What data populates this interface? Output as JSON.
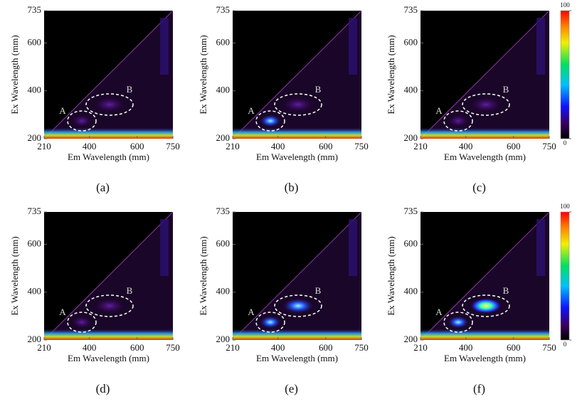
{
  "chart_data": [
    {
      "type": "heatmap",
      "caption": "(a)",
      "x_label": "Em Wavelength (mm)",
      "y_label": "Ex Wavelength (mm)",
      "xlim": [
        210,
        750
      ],
      "ylim": [
        200,
        735
      ],
      "xticks": [
        210,
        400,
        600,
        750
      ],
      "yticks": [
        200,
        400,
        600,
        735
      ],
      "annotations": [
        "A",
        "B"
      ]
    },
    {
      "type": "heatmap",
      "caption": "(b)",
      "x_label": "Em Wavelength (mm)",
      "y_label": "Ex Wavelength (mm)",
      "xlim": [
        210,
        750
      ],
      "ylim": [
        200,
        735
      ],
      "xticks": [
        210,
        400,
        600,
        750
      ],
      "yticks": [
        200,
        400,
        600,
        735
      ],
      "annotations": [
        "A",
        "B"
      ]
    },
    {
      "type": "heatmap",
      "caption": "(c)",
      "x_label": "Em Wavelength (mm)",
      "y_label": "Ex Wavelength (mm)",
      "xlim": [
        210,
        750
      ],
      "ylim": [
        200,
        735
      ],
      "xticks": [
        210,
        400,
        600,
        750
      ],
      "yticks": [
        200,
        400,
        600,
        735
      ],
      "annotations": [
        "A",
        "B"
      ],
      "clim": [
        0,
        100
      ],
      "cticks": [
        0,
        100
      ]
    },
    {
      "type": "heatmap",
      "caption": "(d)",
      "x_label": "Em Wavelength (mm)",
      "y_label": "Ex Wavelength (mm)",
      "xlim": [
        210,
        750
      ],
      "ylim": [
        200,
        735
      ],
      "xticks": [
        210,
        400,
        600,
        750
      ],
      "yticks": [
        200,
        400,
        600,
        735
      ],
      "annotations": [
        "A",
        "B"
      ]
    },
    {
      "type": "heatmap",
      "caption": "(e)",
      "x_label": "Em Wavelength (mm)",
      "y_label": "Ex Wavelength (mm)",
      "xlim": [
        210,
        750
      ],
      "ylim": [
        200,
        735
      ],
      "xticks": [
        210,
        400,
        600,
        750
      ],
      "yticks": [
        200,
        400,
        600,
        735
      ],
      "annotations": [
        "A",
        "B"
      ]
    },
    {
      "type": "heatmap",
      "caption": "(f)",
      "x_label": "Em Wavelength (mm)",
      "y_label": "Ex Wavelength (mm)",
      "xlim": [
        210,
        750
      ],
      "ylim": [
        200,
        735
      ],
      "xticks": [
        210,
        400,
        600,
        750
      ],
      "yticks": [
        200,
        400,
        600,
        735
      ],
      "annotations": [
        "A",
        "B"
      ],
      "clim": [
        0,
        100
      ],
      "cticks": [
        0,
        100
      ]
    }
  ]
}
